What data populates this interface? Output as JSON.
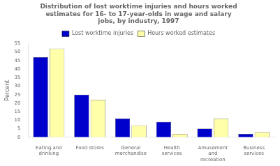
{
  "chart_data": {
    "type": "bar",
    "title": "Distribution of lost worktime injuries and hours worked\nestimates for 16- to 17-year-olds in wage and salary\njobs, by industry, 1997",
    "ylabel": "Percent",
    "categories": [
      "Eating and\ndrinking",
      "Food stores",
      "General\nmerchandise",
      "Health\nservices",
      "Amusement\nand\nrecreation",
      "Business\nservices"
    ],
    "series": [
      {
        "name": "Lost worktime injuries",
        "color": "#0000CC",
        "values": [
          47,
          25,
          11,
          9,
          5,
          2
        ]
      },
      {
        "name": "Hours worked estimates",
        "color": "#FFFFAA",
        "values": [
          52,
          22,
          7,
          2,
          11,
          3
        ]
      }
    ],
    "ylim": [
      0,
      55
    ],
    "yticks": [
      0,
      5,
      10,
      15,
      20,
      25,
      30,
      35,
      40,
      45,
      50,
      55
    ],
    "grid": false,
    "legend": "top"
  }
}
